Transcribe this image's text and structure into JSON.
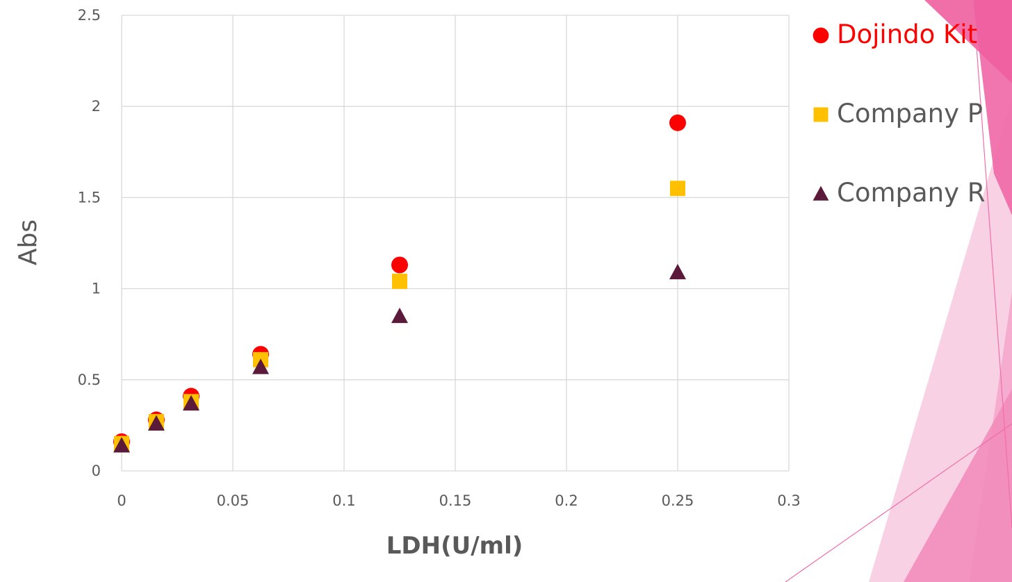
{
  "colors": {
    "series_dojindo": "#ff0000",
    "series_p": "#ffc000",
    "series_r": "#5b1a3a",
    "grid": "#d9d9d9",
    "text": "#595959",
    "deco_pink": "#f06eaa"
  },
  "chart_data": {
    "type": "scatter",
    "title": "",
    "xlabel": "LDH(U/ml)",
    "ylabel": "Abs",
    "xlim": [
      0,
      0.3
    ],
    "ylim": [
      0,
      2.5
    ],
    "x_ticks": [
      "0",
      "0.05",
      "0.1",
      "0.15",
      "0.2",
      "0.25",
      "0.3"
    ],
    "y_ticks": [
      "0",
      "0.5",
      "1",
      "1.5",
      "2",
      "2.5"
    ],
    "grid": true,
    "legend_position": "right",
    "series": [
      {
        "name": "Dojindo Kit",
        "marker": "circle",
        "color": "#ff0000",
        "points": [
          {
            "x": 0,
            "y": 0.16
          },
          {
            "x": 0.0156,
            "y": 0.28
          },
          {
            "x": 0.03125,
            "y": 0.41
          },
          {
            "x": 0.0625,
            "y": 0.64
          },
          {
            "x": 0.125,
            "y": 1.13
          },
          {
            "x": 0.25,
            "y": 1.91
          }
        ]
      },
      {
        "name": "Company P",
        "marker": "square",
        "color": "#ffc000",
        "points": [
          {
            "x": 0,
            "y": 0.15
          },
          {
            "x": 0.0156,
            "y": 0.27
          },
          {
            "x": 0.03125,
            "y": 0.38
          },
          {
            "x": 0.0625,
            "y": 0.61
          },
          {
            "x": 0.125,
            "y": 1.04
          },
          {
            "x": 0.25,
            "y": 1.55
          }
        ]
      },
      {
        "name": "Company R",
        "marker": "triangle",
        "color": "#5b1a3a",
        "points": [
          {
            "x": 0,
            "y": 0.14
          },
          {
            "x": 0.0156,
            "y": 0.26
          },
          {
            "x": 0.03125,
            "y": 0.37
          },
          {
            "x": 0.0625,
            "y": 0.57
          },
          {
            "x": 0.125,
            "y": 0.85
          },
          {
            "x": 0.25,
            "y": 1.09
          }
        ]
      }
    ]
  }
}
